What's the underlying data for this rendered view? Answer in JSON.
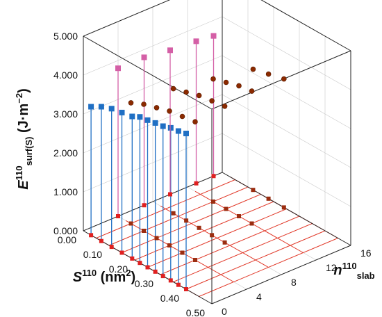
{
  "chart_data": {
    "type": "scatter",
    "title": "",
    "colors": {
      "blue": "#1f6fc4",
      "pink": "#d45fa6",
      "sphere": "#8b2a00",
      "base_point": "#e02020",
      "grid": "#c9c9c9",
      "red_grid": "#e23a2a"
    },
    "axes": {
      "z": {
        "label": "E",
        "label_sup": "110",
        "label_sub": "surf(S)",
        "unit": "(J·m",
        "unit_sup": "−2",
        "unit_close": ")",
        "range": [
          0,
          5
        ],
        "ticks": [
          "0.000",
          "1.000",
          "2.000",
          "3.000",
          "4.000",
          "5.000"
        ]
      },
      "x": {
        "label": "S",
        "label_sup": "110",
        "unit": "(nm",
        "unit_sup": "2",
        "unit_close": ")",
        "range": [
          0,
          0.5
        ],
        "ticks": [
          "0.00",
          "0.10",
          "0.20",
          "0.30",
          "0.40",
          "0.50"
        ]
      },
      "y": {
        "label": "n",
        "label_sup": "110",
        "label_sub": "slab",
        "range": [
          0,
          16
        ],
        "ticks": [
          "0",
          "4",
          "8",
          "12",
          "16"
        ]
      }
    },
    "series": [
      {
        "color": "blue",
        "points": [
          {
            "x": 0.03,
            "y": 0,
            "z": 3.3
          },
          {
            "x": 0.07,
            "y": 0,
            "z": 3.45
          },
          {
            "x": 0.11,
            "y": 0,
            "z": 3.55
          },
          {
            "x": 0.15,
            "y": 0,
            "z": 3.6
          },
          {
            "x": 0.19,
            "y": 0,
            "z": 3.65
          },
          {
            "x": 0.22,
            "y": 0,
            "z": 3.75
          },
          {
            "x": 0.25,
            "y": 0,
            "z": 3.78
          },
          {
            "x": 0.28,
            "y": 0,
            "z": 3.82
          },
          {
            "x": 0.31,
            "y": 0,
            "z": 3.85
          },
          {
            "x": 0.34,
            "y": 0,
            "z": 3.92
          },
          {
            "x": 0.37,
            "y": 0,
            "z": 3.95
          },
          {
            "x": 0.4,
            "y": 0,
            "z": 4.0
          }
        ]
      },
      {
        "color": "pink",
        "points": [
          {
            "x": 0,
            "y": 4,
            "z": 3.8
          },
          {
            "x": 0,
            "y": 7,
            "z": 3.8
          },
          {
            "x": 0,
            "y": 10,
            "z": 3.7
          },
          {
            "x": 0,
            "y": 13,
            "z": 3.65
          },
          {
            "x": 0,
            "y": 15,
            "z": 3.6
          }
        ]
      },
      {
        "color": "sphere",
        "points": [
          {
            "x": 0.05,
            "y": 4,
            "z": 3.1
          },
          {
            "x": 0.1,
            "y": 4,
            "z": 3.25
          },
          {
            "x": 0.15,
            "y": 4,
            "z": 3.35
          },
          {
            "x": 0.2,
            "y": 4,
            "z": 3.45
          },
          {
            "x": 0.25,
            "y": 4,
            "z": 3.5
          },
          {
            "x": 0.3,
            "y": 4,
            "z": 3.55
          },
          {
            "x": 0.08,
            "y": 8,
            "z": 3.2
          },
          {
            "x": 0.13,
            "y": 8,
            "z": 3.3
          },
          {
            "x": 0.18,
            "y": 8,
            "z": 3.4
          },
          {
            "x": 0.23,
            "y": 8,
            "z": 3.45
          },
          {
            "x": 0.28,
            "y": 8,
            "z": 3.5
          },
          {
            "x": 0.1,
            "y": 12,
            "z": 3.15
          },
          {
            "x": 0.15,
            "y": 12,
            "z": 3.25
          },
          {
            "x": 0.2,
            "y": 12,
            "z": 3.35
          },
          {
            "x": 0.25,
            "y": 12,
            "z": 3.4
          },
          {
            "x": 0.12,
            "y": 16,
            "z": 3.1
          },
          {
            "x": 0.18,
            "y": 16,
            "z": 3.2
          },
          {
            "x": 0.24,
            "y": 16,
            "z": 3.3
          }
        ]
      }
    ]
  }
}
